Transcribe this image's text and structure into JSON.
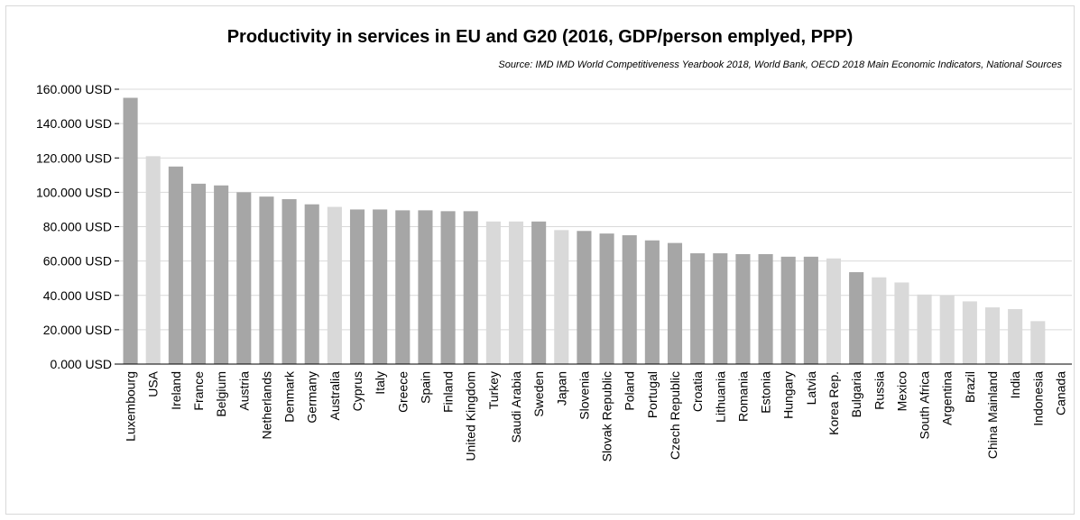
{
  "chart_data": {
    "type": "bar",
    "title": "Productivity in services in EU and G20 (2016, GDP/person emplyed, PPP)",
    "subtitle": "Source: IMD IMD World Competitiveness Yearbook 2018, World Bank, OECD 2018 Main Economic Indicators, National Sources",
    "xlabel": "",
    "ylabel": "",
    "ylim": [
      0,
      160000
    ],
    "yticks": [
      0,
      20000,
      40000,
      60000,
      80000,
      100000,
      120000,
      140000,
      160000
    ],
    "ytick_labels": [
      "0.000 USD",
      "20.000 USD",
      "40.000 USD",
      "60.000 USD",
      "80.000 USD",
      "100.000 USD",
      "120.000 USD",
      "140.000 USD",
      "160.000 USD"
    ],
    "grid": true,
    "legend": "none",
    "colors": {
      "eu": "#a6a6a6",
      "g20": "#d9d9d9",
      "gridline": "#d9d9d9",
      "axis": "#000000"
    },
    "categories": [
      "Luxembourg",
      "USA",
      "Ireland",
      "France",
      "Belgium",
      "Austria",
      "Netherlands",
      "Denmark",
      "Germany",
      "Australia",
      "Cyprus",
      "Italy",
      "Greece",
      "Spain",
      "Finland",
      "United Kingdom",
      "Turkey",
      "Saudi Arabia",
      "Sweden",
      "Japan",
      "Slovenia",
      "Slovak Republic",
      "Poland",
      "Portugal",
      "Czech Republic",
      "Croatia",
      "Lithuania",
      "Romania",
      "Estonia",
      "Hungary",
      "Latvia",
      "Korea Rep.",
      "Bulgaria",
      "Russia",
      "Mexico",
      "South Africa",
      "Argentina",
      "Brazil",
      "China Mainland",
      "India",
      "Indonesia",
      "Canada"
    ],
    "values": [
      155000,
      121000,
      115000,
      105000,
      104000,
      100000,
      97500,
      96000,
      93000,
      91500,
      90000,
      90000,
      89500,
      89500,
      89000,
      89000,
      83000,
      83000,
      83000,
      78000,
      77500,
      76000,
      75000,
      72000,
      70500,
      64500,
      64500,
      64000,
      64000,
      62500,
      62500,
      61500,
      53500,
      50500,
      47500,
      40500,
      40000,
      36500,
      33000,
      32000,
      25000,
      0
    ],
    "group": [
      "eu",
      "g20",
      "eu",
      "eu",
      "eu",
      "eu",
      "eu",
      "eu",
      "eu",
      "g20",
      "eu",
      "eu",
      "eu",
      "eu",
      "eu",
      "eu",
      "g20",
      "g20",
      "eu",
      "g20",
      "eu",
      "eu",
      "eu",
      "eu",
      "eu",
      "eu",
      "eu",
      "eu",
      "eu",
      "eu",
      "eu",
      "g20",
      "eu",
      "g20",
      "g20",
      "g20",
      "g20",
      "g20",
      "g20",
      "g20",
      "g20",
      "g20"
    ]
  }
}
